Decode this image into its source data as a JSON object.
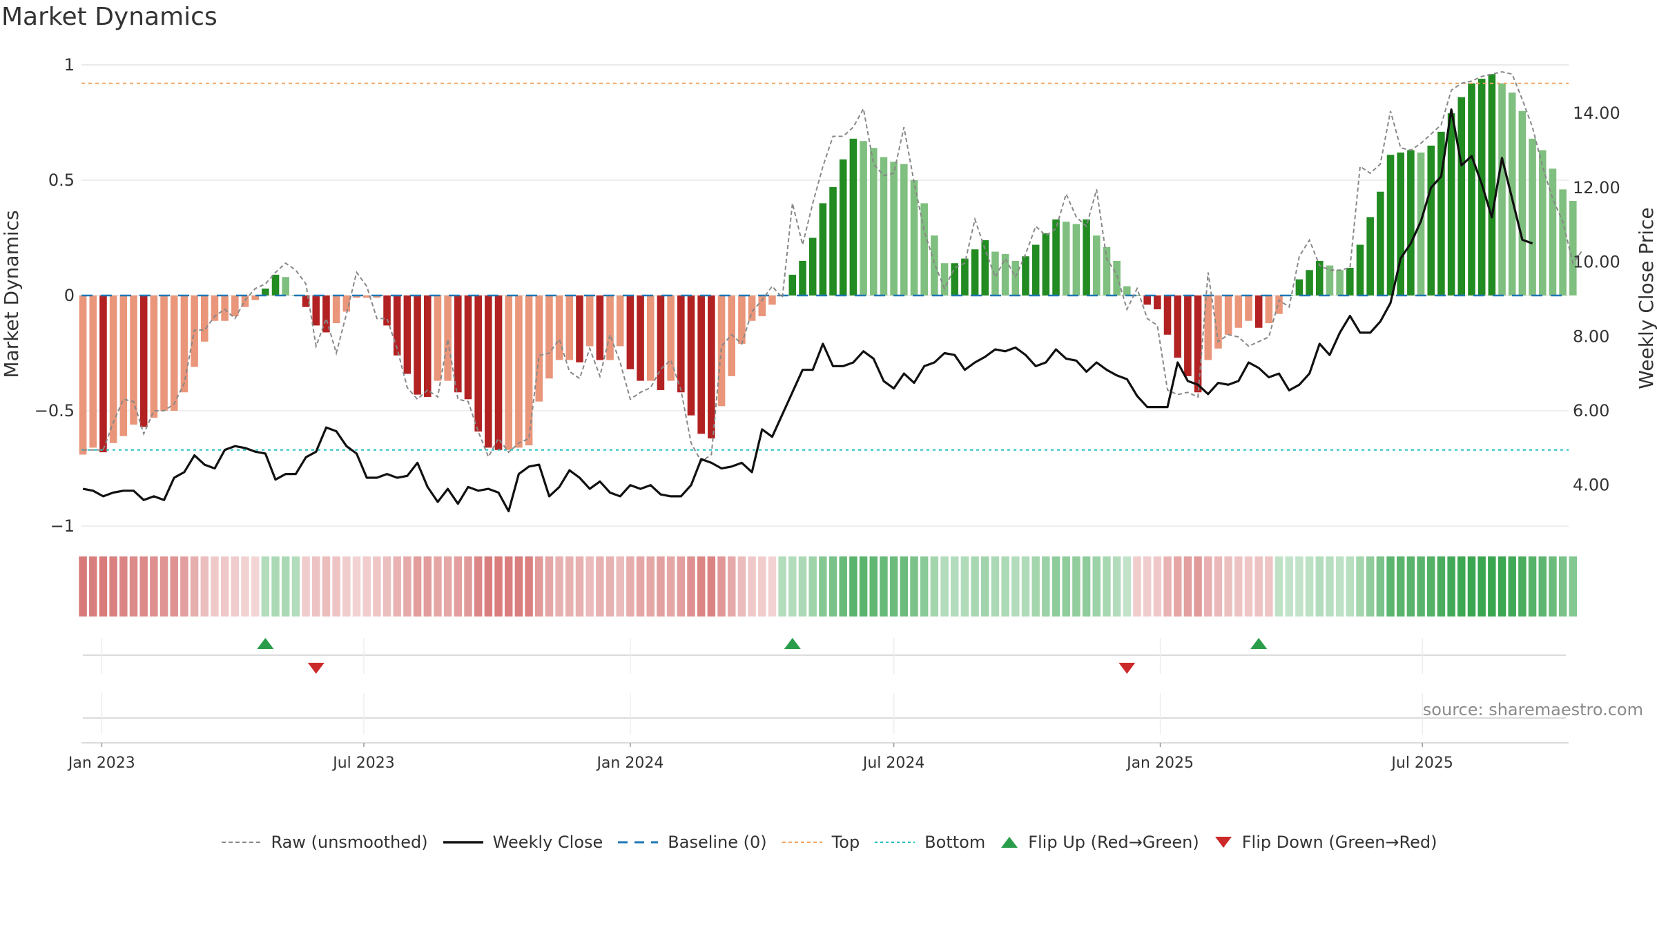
{
  "title": "Market Dynamics",
  "source": "source: sharemaestro.com",
  "colors": {
    "red_strong": "#b22222",
    "red_light": "#e9967a",
    "green_strong": "#228b22",
    "green_light": "#7fbf7f",
    "top_line": "#f4a460",
    "bottom_line": "#20c0c0",
    "baseline": "#1f77b4",
    "price_line": "#111111",
    "raw_line": "#888888",
    "flip_up": "#2a9d4a",
    "flip_down": "#cc2a2a"
  },
  "chart_data": {
    "type": "bar",
    "title": "Market Dynamics",
    "ylabel_left": "Market Dynamics",
    "ylabel_right": "Weekly Close Price",
    "ylim_left": [
      -1.0,
      1.0
    ],
    "ylim_right": [
      2.9,
      15.3
    ],
    "yticks_left": [
      1,
      0.5,
      0,
      -0.5,
      -1
    ],
    "yticks_left_labels": [
      "1",
      "0.5",
      "0",
      "−0.5",
      "−1"
    ],
    "yticks_right": [
      14,
      12,
      10,
      8,
      6,
      4
    ],
    "yticks_right_labels": [
      "14.00",
      "12.00",
      "10.00",
      "8.00",
      "6.00",
      "4.00"
    ],
    "xlim": [
      "2022-12-18",
      "2025-10-10"
    ],
    "xticks": [
      "2023-01-01",
      "2023-07-01",
      "2024-01-01",
      "2024-07-01",
      "2025-01-01",
      "2025-07-01"
    ],
    "xtick_labels": [
      "Jan 2023",
      "Jul 2023",
      "Jan 2024",
      "Jul 2024",
      "Jan 2025",
      "Jul 2025"
    ],
    "start_date": "2022-12-19",
    "top_threshold": 0.92,
    "bottom_threshold": -0.67,
    "baseline": 0,
    "grid": true,
    "legend": "bottom-center",
    "legend_items": [
      {
        "label": "Raw (unsmoothed)",
        "style": "raw"
      },
      {
        "label": "Weekly Close",
        "style": "price"
      },
      {
        "label": "Baseline (0)",
        "style": "baseline"
      },
      {
        "label": "Top",
        "style": "top"
      },
      {
        "label": "Bottom",
        "style": "bottom"
      },
      {
        "label": "Flip Up (Red→Green)",
        "style": "flipup"
      },
      {
        "label": "Flip Down (Green→Red)",
        "style": "flipdown"
      }
    ],
    "series": [
      {
        "name": "Market Dynamics",
        "values": [
          -0.69,
          -0.66,
          -0.68,
          -0.64,
          -0.61,
          -0.56,
          -0.57,
          -0.53,
          -0.5,
          -0.5,
          -0.42,
          -0.31,
          -0.2,
          -0.11,
          -0.11,
          -0.09,
          -0.05,
          -0.02,
          0.03,
          0.09,
          0.08,
          0.0,
          -0.05,
          -0.13,
          -0.16,
          -0.12,
          -0.07,
          -0.01,
          -0.01,
          -0.01,
          -0.13,
          -0.26,
          -0.34,
          -0.43,
          -0.44,
          -0.37,
          -0.37,
          -0.42,
          -0.45,
          -0.59,
          -0.66,
          -0.67,
          -0.67,
          -0.66,
          -0.65,
          -0.46,
          -0.36,
          -0.28,
          -0.28,
          -0.29,
          -0.22,
          -0.28,
          -0.28,
          -0.22,
          -0.32,
          -0.37,
          -0.37,
          -0.41,
          -0.37,
          -0.42,
          -0.52,
          -0.6,
          -0.62,
          -0.48,
          -0.35,
          -0.21,
          -0.11,
          -0.09,
          -0.04,
          0.0,
          0.09,
          0.15,
          0.25,
          0.4,
          0.47,
          0.59,
          0.68,
          0.67,
          0.64,
          0.6,
          0.58,
          0.57,
          0.5,
          0.4,
          0.26,
          0.14,
          0.14,
          0.16,
          0.2,
          0.24,
          0.19,
          0.18,
          0.15,
          0.17,
          0.22,
          0.27,
          0.33,
          0.32,
          0.31,
          0.33,
          0.26,
          0.21,
          0.15,
          0.04,
          0.0,
          -0.04,
          -0.06,
          -0.17,
          -0.27,
          -0.35,
          -0.42,
          -0.28,
          -0.23,
          -0.17,
          -0.14,
          -0.11,
          -0.14,
          -0.12,
          -0.08,
          0.0,
          0.07,
          0.11,
          0.15,
          0.13,
          0.11,
          0.12,
          0.22,
          0.34,
          0.45,
          0.61,
          0.62,
          0.63,
          0.62,
          0.65,
          0.71,
          0.79,
          0.86,
          0.92,
          0.94,
          0.96,
          0.92,
          0.88,
          0.8,
          0.68,
          0.63,
          0.55,
          0.46,
          0.41
        ]
      },
      {
        "name": "Raw (unsmoothed)",
        "values": [
          -0.67,
          -0.67,
          -0.67,
          -0.55,
          -0.45,
          -0.46,
          -0.6,
          -0.5,
          -0.5,
          -0.47,
          -0.38,
          -0.15,
          -0.15,
          -0.09,
          -0.06,
          -0.1,
          -0.02,
          0.03,
          0.05,
          0.1,
          0.14,
          0.11,
          0.05,
          -0.22,
          -0.1,
          -0.25,
          -0.08,
          0.1,
          0.04,
          -0.1,
          -0.1,
          -0.23,
          -0.4,
          -0.45,
          -0.41,
          -0.44,
          -0.19,
          -0.45,
          -0.46,
          -0.59,
          -0.7,
          -0.62,
          -0.68,
          -0.64,
          -0.62,
          -0.26,
          -0.25,
          -0.19,
          -0.33,
          -0.36,
          -0.23,
          -0.35,
          -0.17,
          -0.29,
          -0.45,
          -0.42,
          -0.4,
          -0.32,
          -0.28,
          -0.41,
          -0.64,
          -0.72,
          -0.69,
          -0.22,
          -0.17,
          -0.21,
          -0.07,
          -0.02,
          0.04,
          -0.01,
          0.4,
          0.22,
          0.4,
          0.56,
          0.69,
          0.69,
          0.73,
          0.81,
          0.57,
          0.52,
          0.53,
          0.73,
          0.49,
          0.28,
          0.14,
          0.03,
          0.12,
          0.14,
          0.33,
          0.2,
          0.08,
          0.16,
          0.08,
          0.18,
          0.3,
          0.26,
          0.29,
          0.44,
          0.34,
          0.3,
          0.46,
          0.16,
          0.09,
          -0.06,
          0.03,
          -0.1,
          -0.13,
          -0.41,
          -0.43,
          -0.42,
          -0.44,
          0.1,
          -0.2,
          -0.17,
          -0.18,
          -0.22,
          -0.2,
          -0.18,
          -0.02,
          -0.05,
          0.17,
          0.24,
          0.13,
          0.11,
          0.11,
          0.12,
          0.56,
          0.53,
          0.57,
          0.8,
          0.64,
          0.63,
          0.66,
          0.7,
          0.74,
          0.89,
          0.92,
          0.93,
          0.95,
          0.96,
          0.97,
          0.96,
          0.85,
          0.73,
          0.56,
          0.42,
          0.32,
          0.14,
          0.2
        ]
      },
      {
        "name": "Weekly Close",
        "values": [
          3.9,
          3.85,
          3.7,
          3.8,
          3.85,
          3.85,
          3.6,
          3.7,
          3.6,
          4.2,
          4.35,
          4.8,
          4.55,
          4.45,
          4.95,
          5.05,
          5.0,
          4.9,
          4.85,
          4.15,
          4.3,
          4.3,
          4.75,
          4.9,
          5.55,
          5.45,
          5.05,
          4.85,
          4.2,
          4.2,
          4.3,
          4.2,
          4.25,
          4.6,
          3.95,
          3.55,
          3.9,
          3.5,
          3.95,
          3.85,
          3.9,
          3.8,
          3.3,
          4.3,
          4.5,
          4.55,
          3.7,
          3.95,
          4.4,
          4.2,
          3.9,
          4.1,
          3.8,
          3.7,
          4.0,
          3.9,
          4.0,
          3.75,
          3.7,
          3.7,
          4.0,
          4.7,
          4.6,
          4.45,
          4.5,
          4.6,
          4.35,
          5.5,
          5.3,
          5.9,
          6.5,
          7.1,
          7.1,
          7.8,
          7.2,
          7.2,
          7.3,
          7.6,
          7.4,
          6.8,
          6.6,
          7.0,
          6.75,
          7.2,
          7.3,
          7.55,
          7.5,
          7.1,
          7.3,
          7.45,
          7.65,
          7.6,
          7.7,
          7.5,
          7.2,
          7.3,
          7.65,
          7.4,
          7.35,
          7.05,
          7.3,
          7.1,
          6.95,
          6.85,
          6.4,
          6.1,
          6.1,
          6.1,
          7.3,
          6.8,
          6.7,
          6.45,
          6.75,
          6.7,
          6.8,
          7.3,
          7.15,
          6.9,
          7.0,
          6.55,
          6.7,
          7.0,
          7.8,
          7.5,
          8.1,
          8.55,
          8.1,
          8.1,
          8.4,
          8.9,
          10.1,
          10.5,
          11.1,
          12.0,
          12.3,
          14.1,
          12.6,
          12.85,
          12.1,
          11.2,
          12.8,
          11.7,
          10.6,
          10.5
        ]
      }
    ],
    "strip": {
      "type": "heatmap",
      "sign": [
        -1,
        -1,
        -1,
        -1,
        -1,
        -1,
        -1,
        -1,
        -1,
        -1,
        -1,
        -1,
        -1,
        -1,
        -1,
        -1,
        -1,
        -1,
        1,
        1,
        1,
        1,
        -1,
        -1,
        -1,
        -1,
        -1,
        -1,
        -1,
        -1,
        -1,
        -1,
        -1,
        -1,
        -1,
        -1,
        -1,
        -1,
        -1,
        -1,
        -1,
        -1,
        -1,
        -1,
        -1,
        -1,
        -1,
        -1,
        -1,
        -1,
        -1,
        -1,
        -1,
        -1,
        -1,
        -1,
        -1,
        -1,
        -1,
        -1,
        -1,
        -1,
        -1,
        -1,
        -1,
        -1,
        -1,
        -1,
        -1,
        1,
        1,
        1,
        1,
        1,
        1,
        1,
        1,
        1,
        1,
        1,
        1,
        1,
        1,
        1,
        1,
        1,
        1,
        1,
        1,
        1,
        1,
        1,
        1,
        1,
        1,
        1,
        1,
        1,
        1,
        1,
        1,
        1,
        1,
        1,
        -1,
        -1,
        -1,
        -1,
        -1,
        -1,
        -1,
        -1,
        -1,
        -1,
        -1,
        -1,
        -1,
        -1,
        1,
        1,
        1,
        1,
        1,
        1,
        1,
        1,
        1,
        1,
        1,
        1,
        1,
        1,
        1,
        1,
        1,
        1,
        1,
        1,
        1,
        1,
        1,
        1,
        1,
        1,
        1,
        1,
        1,
        1,
        1,
        1,
        1,
        1
      ],
      "intensity": [
        0.75,
        0.72,
        0.74,
        0.7,
        0.67,
        0.62,
        0.63,
        0.58,
        0.55,
        0.55,
        0.46,
        0.34,
        0.22,
        0.12,
        0.12,
        0.1,
        0.06,
        0.03,
        0.2,
        0.25,
        0.25,
        0.2,
        0.1,
        0.18,
        0.22,
        0.17,
        0.1,
        0.05,
        0.1,
        0.15,
        0.2,
        0.3,
        0.37,
        0.47,
        0.48,
        0.4,
        0.4,
        0.46,
        0.5,
        0.65,
        0.72,
        0.73,
        0.73,
        0.72,
        0.7,
        0.5,
        0.4,
        0.31,
        0.31,
        0.32,
        0.24,
        0.31,
        0.31,
        0.24,
        0.35,
        0.4,
        0.4,
        0.45,
        0.4,
        0.46,
        0.57,
        0.66,
        0.68,
        0.52,
        0.38,
        0.23,
        0.12,
        0.1,
        0.05,
        0.2,
        0.2,
        0.25,
        0.33,
        0.5,
        0.58,
        0.7,
        0.8,
        0.79,
        0.75,
        0.7,
        0.68,
        0.67,
        0.58,
        0.47,
        0.3,
        0.2,
        0.2,
        0.22,
        0.27,
        0.32,
        0.25,
        0.24,
        0.2,
        0.22,
        0.3,
        0.36,
        0.44,
        0.43,
        0.42,
        0.44,
        0.35,
        0.28,
        0.2,
        0.1,
        0.1,
        0.1,
        0.12,
        0.3,
        0.4,
        0.46,
        0.5,
        0.32,
        0.26,
        0.2,
        0.18,
        0.15,
        0.18,
        0.16,
        0.12,
        0.1,
        0.1,
        0.14,
        0.2,
        0.17,
        0.14,
        0.16,
        0.3,
        0.44,
        0.58,
        0.78,
        0.79,
        0.8,
        0.79,
        0.83,
        0.9,
        0.95,
        0.98,
        1.0,
        1.0,
        1.0,
        0.98,
        0.95,
        0.9,
        0.82,
        0.77,
        0.68,
        0.58,
        0.52
      ]
    },
    "flip_up_dates": [
      "2023-04-24",
      "2024-04-22",
      "2025-03-10"
    ],
    "flip_down_dates": [
      "2023-05-29",
      "2024-12-09"
    ]
  }
}
